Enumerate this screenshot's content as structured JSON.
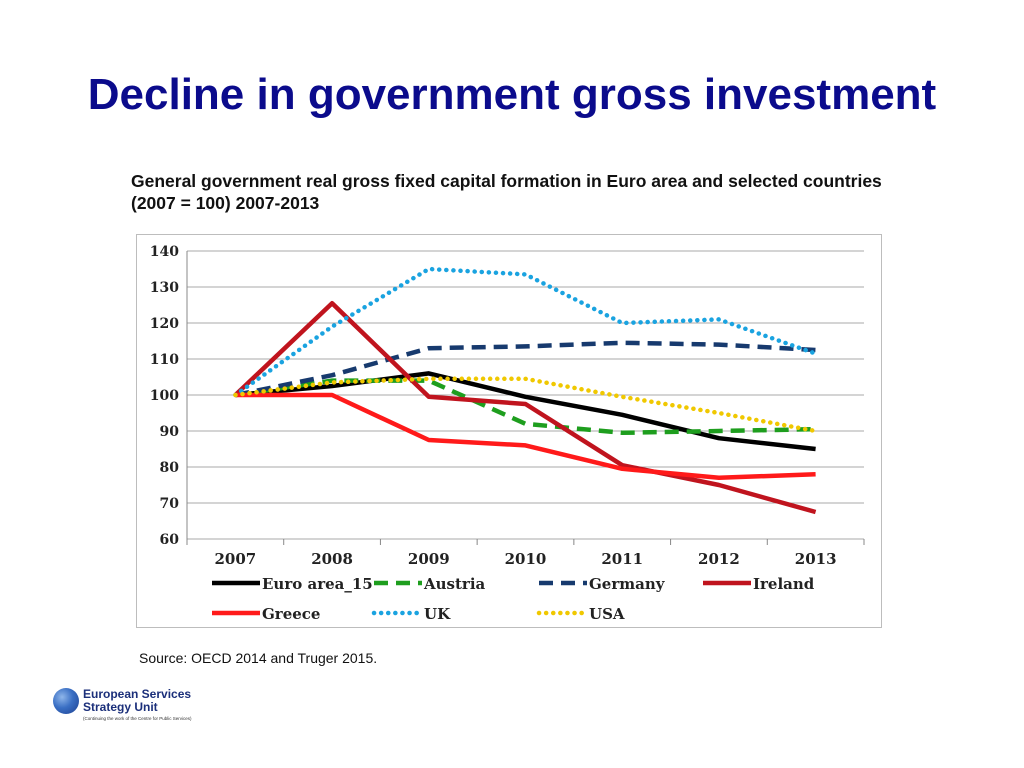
{
  "slide": {
    "title": "Decline in government gross investment",
    "source": "Source: OECD 2014 and Truger 2015.",
    "logo": {
      "line1": "European Services",
      "line2": "Strategy Unit",
      "line3": "(Continuing the work of the Centre for Public Services)"
    }
  },
  "chart_data": {
    "type": "line",
    "title": "General government real gross fixed capital formation in Euro area and selected countries (2007 = 100) 2007-2013",
    "x": [
      "2007",
      "2008",
      "2009",
      "2010",
      "2011",
      "2012",
      "2013"
    ],
    "ylim": [
      60,
      140
    ],
    "yticks": [
      60,
      70,
      80,
      90,
      100,
      110,
      120,
      130,
      140
    ],
    "grid": true,
    "legend_position": "bottom",
    "series": [
      {
        "name": "Euro area_15",
        "values": [
          100,
          102.5,
          106,
          99.5,
          94.5,
          88,
          85
        ],
        "color": "#000000",
        "style": "solid"
      },
      {
        "name": "Austria",
        "values": [
          100,
          104,
          104,
          92,
          89.5,
          90,
          90.5
        ],
        "color": "#1e9e1e",
        "style": "dashed"
      },
      {
        "name": "Germany",
        "values": [
          100,
          105.5,
          113,
          113.5,
          114.5,
          114,
          112.5
        ],
        "color": "#173a6e",
        "style": "dashed"
      },
      {
        "name": "Ireland",
        "values": [
          100,
          125.5,
          99.5,
          97.5,
          80.5,
          75,
          67.5
        ],
        "color": "#c0141e",
        "style": "solid"
      },
      {
        "name": "Greece",
        "values": [
          100,
          100,
          87.5,
          86,
          79.5,
          77,
          78
        ],
        "color": "#ff1a1a",
        "style": "solid"
      },
      {
        "name": "UK",
        "values": [
          100,
          119,
          135,
          133.5,
          120,
          121,
          111.5
        ],
        "color": "#1aa3e0",
        "style": "dotted"
      },
      {
        "name": "USA",
        "values": [
          100,
          103.5,
          104.5,
          104.5,
          99.5,
          95,
          90
        ],
        "color": "#f0c800",
        "style": "dotted"
      }
    ]
  }
}
